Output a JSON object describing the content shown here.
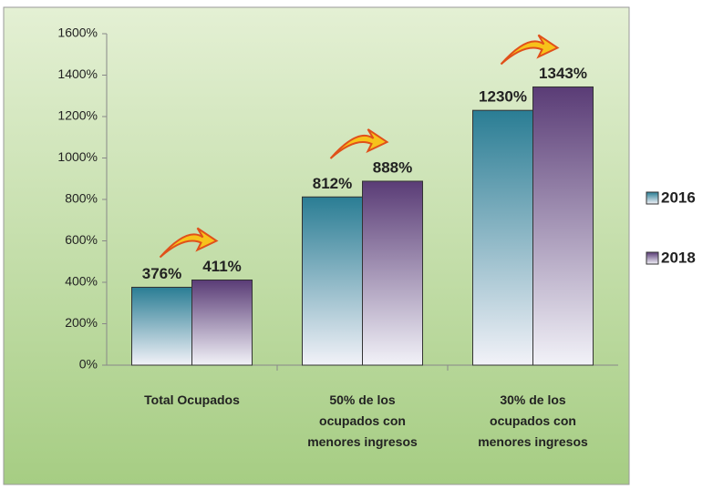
{
  "chart_data": {
    "type": "bar",
    "categories": [
      "Total Ocupados",
      "50% de los ocupados con menores ingresos",
      "30% de los ocupados con menores ingresos"
    ],
    "series": [
      {
        "name": "2016",
        "color": "#2a7d94",
        "values": [
          376,
          812,
          1230
        ],
        "value_labels": [
          "376%",
          "812%",
          "1230%"
        ]
      },
      {
        "name": "2018",
        "color": "#5a3c76",
        "values": [
          411,
          888,
          1343
        ],
        "value_labels": [
          "411%",
          "888%",
          "1343%"
        ]
      }
    ],
    "ylim": [
      0,
      1600
    ],
    "yticks": [
      {
        "value": 0,
        "label": "0%"
      },
      {
        "value": 200,
        "label": "200%"
      },
      {
        "value": 400,
        "label": "400%"
      },
      {
        "value": 600,
        "label": "600%"
      },
      {
        "value": 800,
        "label": "800%"
      },
      {
        "value": 1000,
        "label": "1000%"
      },
      {
        "value": 1200,
        "label": "1200%"
      },
      {
        "value": 1400,
        "label": "1400%"
      },
      {
        "value": 1600,
        "label": "1600%"
      }
    ],
    "legend": "right"
  }
}
